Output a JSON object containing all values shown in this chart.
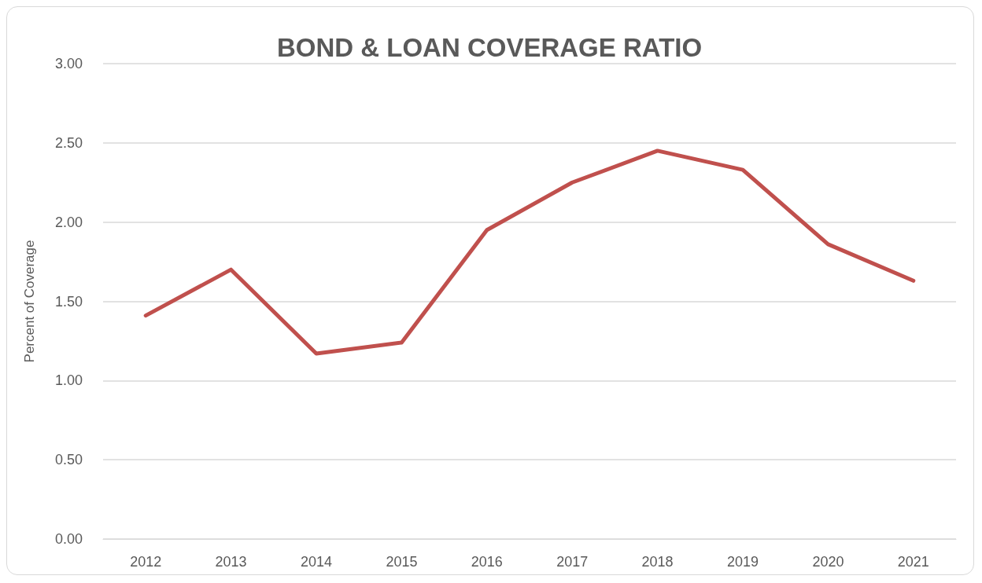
{
  "chart_data": {
    "type": "line",
    "title": "BOND & LOAN COVERAGE RATIO",
    "ylabel": "Percent of Coverage",
    "categories": [
      "2012",
      "2013",
      "2014",
      "2015",
      "2016",
      "2017",
      "2018",
      "2019",
      "2020",
      "2021"
    ],
    "series": [
      {
        "color": "#c0504d",
        "values": [
          1.41,
          1.7,
          1.17,
          1.24,
          1.95,
          2.25,
          2.45,
          2.33,
          1.86,
          1.63
        ]
      }
    ],
    "ylim": [
      0,
      3
    ],
    "yticks": [
      {
        "value": 0,
        "label": "0.00"
      },
      {
        "value": 0.5,
        "label": "0.50"
      },
      {
        "value": 1,
        "label": "1.00"
      },
      {
        "value": 1.5,
        "label": "1.50"
      },
      {
        "value": 2,
        "label": "2.00"
      },
      {
        "value": 2.5,
        "label": "2.50"
      },
      {
        "value": 3,
        "label": "3.00"
      }
    ],
    "grid": "y",
    "marker": "none",
    "line_style": "solid"
  }
}
